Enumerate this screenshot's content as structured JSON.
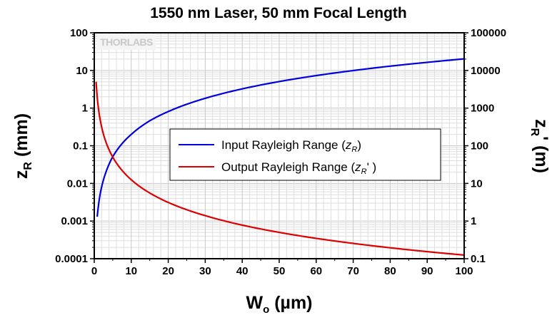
{
  "chart_data": {
    "type": "line",
    "title": "1550 nm Laser, 50 mm Focal Length",
    "xlabel": {
      "main": "W",
      "sub": "o",
      "rest": " (µm)"
    },
    "ylabel_left": {
      "main": "z",
      "sub": "R",
      "rest": " (mm)"
    },
    "ylabel_right": {
      "main": "z",
      "sub": "R",
      "rest": "' (m)"
    },
    "xlim": [
      0,
      100
    ],
    "ylim_left": [
      0.0001,
      100
    ],
    "ylim_right": [
      0.1,
      100000
    ],
    "yscale": "log",
    "grid": true,
    "x_ticks": [
      "0",
      "10",
      "20",
      "30",
      "40",
      "50",
      "60",
      "70",
      "80",
      "90",
      "100"
    ],
    "y_ticks_left": [
      "0.0001",
      "0.001",
      "0.01",
      "0.1",
      "1",
      "10",
      "100"
    ],
    "y_ticks_right": [
      "0.1",
      "1",
      "10",
      "100",
      "1000",
      "10000",
      "100000"
    ],
    "legend_position": "center-right",
    "watermark": "THORLABS",
    "series": [
      {
        "name": {
          "prefix": "Input Rayleigh Range (",
          "sym": "z",
          "sub": "R",
          "suffix": ")"
        },
        "color": "#0000dd",
        "axis": "left",
        "x": [
          0.8,
          1,
          1.5,
          2,
          3,
          5,
          7,
          10,
          15,
          20,
          30,
          40,
          50,
          60,
          70,
          80,
          90,
          100
        ],
        "y": [
          0.0013,
          0.002,
          0.0046,
          0.0081,
          0.018,
          0.051,
          0.099,
          0.2,
          0.46,
          0.81,
          1.82,
          3.24,
          5.07,
          7.3,
          9.93,
          13.0,
          16.4,
          20.3
        ]
      },
      {
        "name": {
          "prefix": "Output Rayleigh Range (",
          "sym": "z",
          "sub": "R",
          "suffix": "' )"
        },
        "color": "#dd0000",
        "axis": "right",
        "x": [
          0.5,
          0.8,
          1,
          1.5,
          2,
          3,
          5,
          7,
          10,
          15,
          20,
          30,
          40,
          50,
          60,
          70,
          80,
          90,
          100
        ],
        "y": [
          5000,
          1960,
          1250,
          556,
          312,
          139,
          50,
          25.5,
          12.5,
          5.56,
          3.12,
          1.39,
          0.78,
          0.5,
          0.347,
          0.255,
          0.195,
          0.154,
          0.125
        ]
      }
    ]
  }
}
